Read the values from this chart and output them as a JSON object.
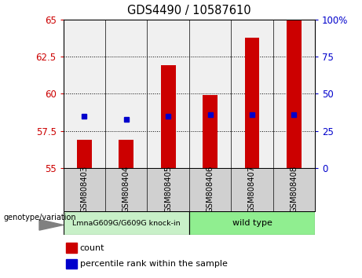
{
  "title": "GDS4490 / 10587610",
  "samples": [
    "GSM808403",
    "GSM808404",
    "GSM808405",
    "GSM808406",
    "GSM808407",
    "GSM808408"
  ],
  "bar_values": [
    56.9,
    56.9,
    61.9,
    59.9,
    63.8,
    65.0
  ],
  "percentile_values": [
    58.5,
    58.3,
    58.5,
    58.6,
    58.6,
    58.6
  ],
  "bar_bottom": 55.0,
  "ylim": [
    55.0,
    65.0
  ],
  "yticks_left": [
    55,
    57.5,
    60,
    62.5,
    65
  ],
  "yticks_right": [
    0,
    25,
    50,
    75,
    100
  ],
  "group1_label": "LmnaG609G/G609G knock-in",
  "group2_label": "wild type",
  "group1_color": "#c8f0c8",
  "group2_color": "#90ee90",
  "bar_color": "#cc0000",
  "percentile_color": "#0000cc",
  "legend_count_label": "count",
  "legend_percentile_label": "percentile rank within the sample",
  "genotype_label": "genotype/variation",
  "plot_bg": "#f0f0f0",
  "sample_bg_color": "#d0d0d0",
  "n_group1": 3,
  "n_group2": 3
}
